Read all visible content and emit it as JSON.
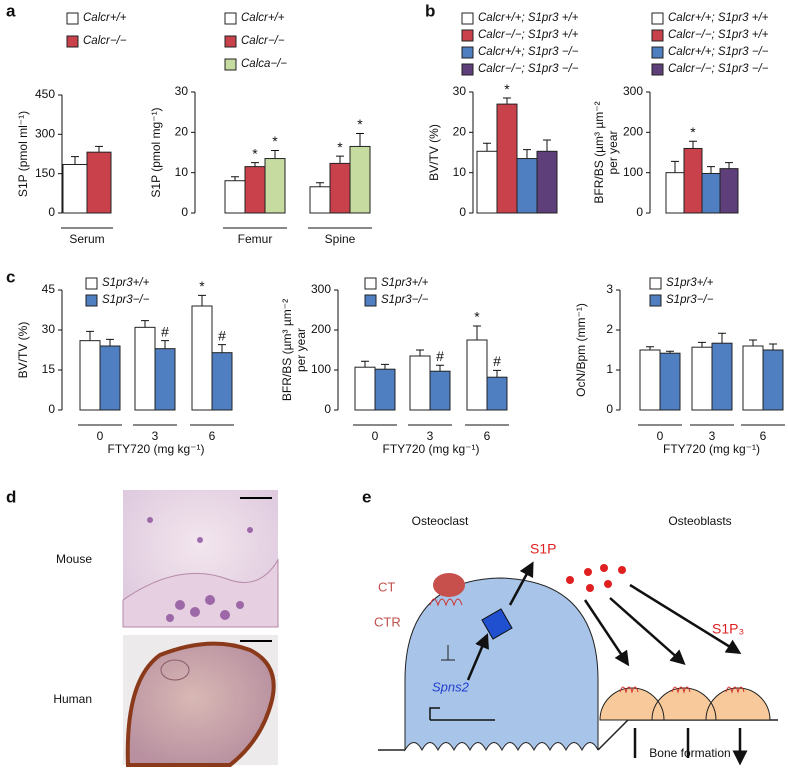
{
  "panel_labels": [
    "a",
    "b",
    "c",
    "d",
    "e"
  ],
  "chart_data": [
    {
      "type": "bar",
      "ylabel": "S1P (pmol ml⁻¹)",
      "categories": [
        "Serum"
      ],
      "ylim": [
        0,
        450
      ],
      "yticks": [
        0,
        150,
        300,
        450
      ],
      "series": [
        {
          "name": "Calcr+/+",
          "color": "#ffffff",
          "values": [
            185
          ],
          "errors": [
            30
          ],
          "significance": [
            null
          ]
        },
        {
          "name": "Calcr−/−",
          "color": "#c8414b",
          "values": [
            232
          ],
          "errors": [
            22
          ],
          "significance": [
            null
          ]
        }
      ]
    },
    {
      "type": "bar",
      "ylabel": "S1P (pmol mg⁻¹)",
      "categories": [
        "Femur",
        "Spine"
      ],
      "ylim": [
        0,
        30
      ],
      "yticks": [
        0,
        10,
        20,
        30
      ],
      "series": [
        {
          "name": "Calcr+/+",
          "color": "#ffffff",
          "values": [
            8,
            6.5
          ],
          "errors": [
            1,
            1
          ],
          "significance": [
            null,
            null
          ]
        },
        {
          "name": "Calcr−/−",
          "color": "#c8414b",
          "values": [
            11.5,
            12.3
          ],
          "errors": [
            1,
            1.8
          ],
          "significance": [
            "*",
            "*"
          ]
        },
        {
          "name": "Calca−/−",
          "color": "#c5dba0",
          "values": [
            13.5,
            16.5
          ],
          "errors": [
            2,
            3.2
          ],
          "significance": [
            "*",
            "*"
          ]
        }
      ]
    },
    {
      "type": "bar",
      "ylabel": "BV/TV (%)",
      "categories": [
        null
      ],
      "ylim": [
        0,
        30
      ],
      "yticks": [
        0,
        10,
        20,
        30
      ],
      "series": [
        {
          "name": "Calcr+/+; S1pr3 +/+",
          "color": "#ffffff",
          "values": [
            15.3
          ],
          "errors": [
            2
          ],
          "significance": [
            null
          ]
        },
        {
          "name": "Calcr−/−; S1pr3 +/+",
          "color": "#c8414b",
          "values": [
            27
          ],
          "errors": [
            1.5
          ],
          "significance": [
            "*"
          ]
        },
        {
          "name": "Calcr+/+; S1pr3 −/−",
          "color": "#4f7fc0",
          "values": [
            13.5
          ],
          "errors": [
            2.2
          ],
          "significance": [
            null
          ]
        },
        {
          "name": "Calcr−/−; S1pr3 −/−",
          "color": "#5f3f7a",
          "values": [
            15.3
          ],
          "errors": [
            2.8
          ],
          "significance": [
            null
          ]
        }
      ]
    },
    {
      "type": "bar",
      "ylabel": [
        "BFR/BS (µm³ µm⁻²",
        "per year"
      ],
      "categories": [
        null
      ],
      "ylim": [
        0,
        300
      ],
      "yticks": [
        0,
        100,
        200,
        300
      ],
      "series": [
        {
          "name": "Calcr+/+; S1pr3 +/+",
          "color": "#ffffff",
          "values": [
            100
          ],
          "errors": [
            28
          ],
          "significance": [
            null
          ]
        },
        {
          "name": "Calcr−/−; S1pr3 +/+",
          "color": "#c8414b",
          "values": [
            160
          ],
          "errors": [
            18
          ],
          "significance": [
            "*"
          ]
        },
        {
          "name": "Calcr+/+; S1pr3 −/−",
          "color": "#4f7fc0",
          "values": [
            98
          ],
          "errors": [
            17
          ],
          "significance": [
            null
          ]
        },
        {
          "name": "Calcr−/−; S1pr3 −/−",
          "color": "#5f3f7a",
          "values": [
            110
          ],
          "errors": [
            15
          ],
          "significance": [
            null
          ]
        }
      ]
    },
    {
      "type": "bar",
      "ylabel": "BV/TV (%)",
      "xlabel": "FTY720 (mg kg⁻¹)",
      "categories": [
        "0",
        "3",
        "6"
      ],
      "ylim": [
        0,
        45
      ],
      "yticks": [
        0,
        15,
        30,
        45
      ],
      "series": [
        {
          "name": "S1pr3+/+",
          "color": "#ffffff",
          "values": [
            26,
            31,
            39
          ],
          "errors": [
            3.5,
            2.5,
            4
          ],
          "significance": [
            null,
            null,
            "*"
          ]
        },
        {
          "name": "S1pr3−/−",
          "color": "#4f7fc0",
          "values": [
            24,
            23,
            21.5
          ],
          "errors": [
            2.5,
            3,
            3
          ],
          "significance": [
            null,
            "#",
            "#"
          ]
        }
      ]
    },
    {
      "type": "bar",
      "ylabel": [
        "BFR/BS (µm³ µm⁻²",
        "per year"
      ],
      "xlabel": "FTY720 (mg kg⁻¹)",
      "categories": [
        "0",
        "3",
        "6"
      ],
      "ylim": [
        0,
        300
      ],
      "yticks": [
        0,
        100,
        200,
        300
      ],
      "series": [
        {
          "name": "S1pr3+/+",
          "color": "#ffffff",
          "values": [
            107,
            135,
            175
          ],
          "errors": [
            15,
            15,
            35
          ],
          "significance": [
            null,
            null,
            "*"
          ]
        },
        {
          "name": "S1pr3−/−",
          "color": "#4f7fc0",
          "values": [
            102,
            97,
            82
          ],
          "errors": [
            12,
            15,
            17
          ],
          "significance": [
            null,
            "#",
            "#"
          ]
        }
      ]
    },
    {
      "type": "bar",
      "ylabel": "OcN/Bpm (mm⁻¹)",
      "xlabel": "FTY720 (mg kg⁻¹)",
      "categories": [
        "0",
        "3",
        "6"
      ],
      "ylim": [
        0,
        3
      ],
      "yticks": [
        0,
        1,
        2,
        3
      ],
      "series": [
        {
          "name": "S1pr3+/+",
          "color": "#ffffff",
          "values": [
            1.5,
            1.57,
            1.6
          ],
          "errors": [
            0.08,
            0.12,
            0.15
          ],
          "significance": [
            null,
            null,
            null
          ]
        },
        {
          "name": "S1pr3−/−",
          "color": "#4f7fc0",
          "values": [
            1.42,
            1.67,
            1.5
          ],
          "errors": [
            0.05,
            0.25,
            0.15
          ],
          "significance": [
            null,
            null,
            null
          ]
        }
      ]
    }
  ],
  "panel_d": {
    "rows": [
      "Mouse",
      "Human"
    ]
  },
  "panel_e": {
    "osteoclast": "Osteoclast",
    "osteoblasts": "Osteoblasts",
    "s1p": "S1P",
    "ct": "CT",
    "ctr": "CTR",
    "spns2": "Spns2",
    "s1p3": "S1P₃",
    "bone_formation": "Bone formation"
  }
}
